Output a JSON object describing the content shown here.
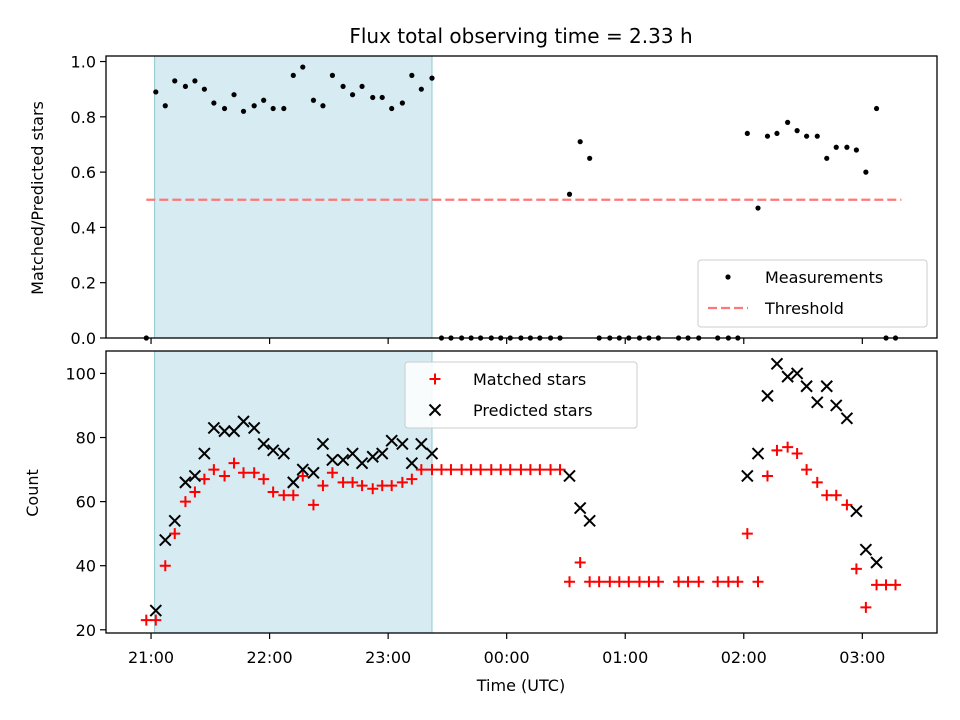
{
  "chart_data": [
    {
      "type": "scatter",
      "title": "Flux total observing time = 2.33 h",
      "xlabel": "",
      "ylabel": "Matched/Predicted stars",
      "ylim": [
        0,
        1.02
      ],
      "yticks": [
        "0.0",
        "0.2",
        "0.4",
        "0.6",
        "0.8",
        "1.0"
      ],
      "xticks": [
        "21:00",
        "22:00",
        "23:00",
        "00:00",
        "01:00",
        "02:00",
        "03:00"
      ],
      "xlim_hours": [
        20.62,
        27.63
      ],
      "shaded_region_hours": [
        21.03,
        23.37
      ],
      "shaded_color": "#add8e6",
      "threshold": {
        "name": "Threshold",
        "value": 0.5,
        "x_hours": [
          20.96,
          27.33
        ],
        "color": "#ff7777"
      },
      "legend": {
        "location": "lower right",
        "entries": [
          "Measurements",
          "Threshold"
        ]
      },
      "series": [
        {
          "name": "Measurements",
          "color": "#000000",
          "x_hours": [
            20.96,
            21.04,
            21.12,
            21.2,
            21.29,
            21.37,
            21.45,
            21.53,
            21.62,
            21.7,
            21.78,
            21.87,
            21.95,
            22.03,
            22.12,
            22.2,
            22.28,
            22.37,
            22.45,
            22.53,
            22.62,
            22.7,
            22.78,
            22.87,
            22.95,
            23.03,
            23.12,
            23.2,
            23.28,
            23.37,
            23.45,
            23.53,
            23.62,
            23.7,
            23.78,
            23.87,
            23.95,
            24.03,
            24.12,
            24.2,
            24.28,
            24.37,
            24.45,
            24.53,
            24.62,
            24.7,
            24.78,
            24.87,
            24.95,
            25.03,
            25.12,
            25.2,
            25.28,
            25.45,
            25.53,
            25.62,
            25.78,
            25.87,
            25.95,
            26.03,
            26.12,
            26.2,
            26.28,
            26.37,
            26.45,
            26.53,
            26.62,
            26.7,
            26.78,
            26.87,
            26.95,
            27.03,
            27.12,
            27.2,
            27.28
          ],
          "y": [
            0.0,
            0.89,
            0.84,
            0.93,
            0.91,
            0.93,
            0.9,
            0.85,
            0.83,
            0.88,
            0.82,
            0.84,
            0.86,
            0.83,
            0.83,
            0.95,
            0.98,
            0.86,
            0.84,
            0.95,
            0.91,
            0.88,
            0.91,
            0.87,
            0.87,
            0.83,
            0.85,
            0.95,
            0.9,
            0.94,
            0.0,
            0.0,
            0.0,
            0.0,
            0.0,
            0.0,
            0.0,
            0.0,
            0.0,
            0.0,
            0.0,
            0.0,
            0.0,
            0.52,
            0.71,
            0.65,
            0.0,
            0.0,
            0.0,
            0.0,
            0.0,
            0.0,
            0.0,
            0.0,
            0.0,
            0.0,
            0.0,
            0.0,
            0.0,
            0.74,
            0.47,
            0.73,
            0.74,
            0.78,
            0.75,
            0.73,
            0.73,
            0.65,
            0.69,
            0.69,
            0.68,
            0.6,
            0.83,
            0.0,
            0.0
          ]
        }
      ]
    },
    {
      "type": "scatter",
      "title": "",
      "xlabel": "Time (UTC)",
      "ylabel": "Count",
      "ylim": [
        19,
        107
      ],
      "yticks": [
        "20",
        "40",
        "60",
        "80",
        "100"
      ],
      "xticks": [
        "21:00",
        "22:00",
        "23:00",
        "00:00",
        "01:00",
        "02:00",
        "03:00"
      ],
      "xlim_hours": [
        20.62,
        27.63
      ],
      "shaded_region_hours": [
        21.03,
        23.37
      ],
      "shaded_color": "#add8e6",
      "legend": {
        "location": "upper center",
        "entries": [
          "Matched stars",
          "Predicted stars"
        ]
      },
      "series": [
        {
          "name": "Matched stars",
          "marker": "plus",
          "color": "#ff0000",
          "x_hours": [
            20.96,
            21.04,
            21.12,
            21.2,
            21.29,
            21.37,
            21.45,
            21.53,
            21.62,
            21.7,
            21.78,
            21.87,
            21.95,
            22.03,
            22.12,
            22.2,
            22.28,
            22.37,
            22.45,
            22.53,
            22.62,
            22.7,
            22.78,
            22.87,
            22.95,
            23.03,
            23.12,
            23.2,
            23.28,
            23.37,
            23.45,
            23.53,
            23.62,
            23.7,
            23.78,
            23.87,
            23.95,
            24.03,
            24.12,
            24.2,
            24.28,
            24.37,
            24.45,
            24.53,
            24.62,
            24.7,
            24.78,
            24.87,
            24.95,
            25.03,
            25.12,
            25.2,
            25.28,
            25.45,
            25.53,
            25.62,
            25.78,
            25.87,
            25.95,
            26.03,
            26.12,
            26.2,
            26.28,
            26.37,
            26.45,
            26.53,
            26.62,
            26.7,
            26.78,
            26.87,
            26.95,
            27.03,
            27.12,
            27.2,
            27.28
          ],
          "y": [
            23,
            23,
            40,
            50,
            60,
            63,
            67,
            70,
            68,
            72,
            69,
            69,
            67,
            63,
            62,
            62,
            68,
            59,
            65,
            69,
            66,
            66,
            65,
            64,
            65,
            65,
            66,
            67,
            70,
            70,
            70,
            70,
            70,
            70,
            70,
            70,
            70,
            70,
            70,
            70,
            70,
            70,
            70,
            35,
            41,
            35,
            35,
            35,
            35,
            35,
            35,
            35,
            35,
            35,
            35,
            35,
            35,
            35,
            35,
            50,
            35,
            68,
            76,
            77,
            75,
            70,
            66,
            62,
            62,
            59,
            39,
            27,
            34,
            34,
            34
          ]
        },
        {
          "name": "Predicted stars",
          "marker": "x",
          "color": "#000000",
          "x_hours": [
            21.04,
            21.12,
            21.2,
            21.29,
            21.37,
            21.45,
            21.53,
            21.62,
            21.7,
            21.78,
            21.87,
            21.95,
            22.03,
            22.12,
            22.2,
            22.28,
            22.37,
            22.45,
            22.53,
            22.62,
            22.7,
            22.78,
            22.87,
            22.95,
            23.03,
            23.12,
            23.2,
            23.28,
            23.37,
            24.53,
            24.62,
            24.7,
            26.03,
            26.12,
            26.2,
            26.28,
            26.37,
            26.45,
            26.53,
            26.62,
            26.7,
            26.78,
            26.87,
            26.95,
            27.03,
            27.12
          ],
          "y": [
            26,
            48,
            54,
            66,
            68,
            75,
            83,
            82,
            82,
            85,
            83,
            78,
            76,
            75,
            66,
            70,
            69,
            78,
            73,
            73,
            75,
            72,
            74,
            75,
            79,
            78,
            72,
            78,
            75,
            68,
            58,
            54,
            68,
            75,
            93,
            103,
            99,
            100,
            96,
            91,
            96,
            90,
            86,
            57,
            45,
            41
          ]
        }
      ]
    }
  ]
}
